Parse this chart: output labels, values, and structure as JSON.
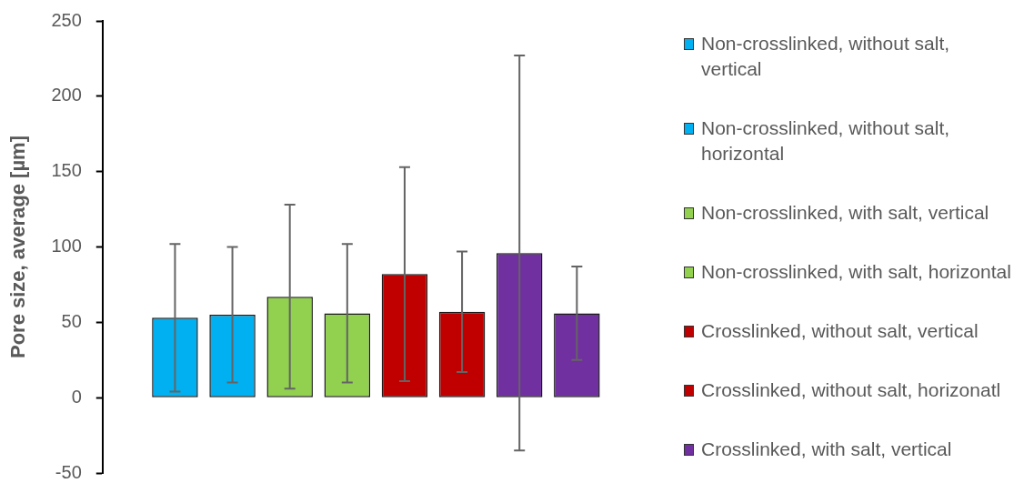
{
  "chart_data": {
    "type": "bar",
    "ylabel": "Pore size, average [µm]",
    "categories": [
      null
    ],
    "series": [
      {
        "name": "Non-crosslinked, without salt, vertical",
        "color": "#00b0f0",
        "values": [
          53
        ],
        "errors": [
          49
        ]
      },
      {
        "name": "Non-crosslinked, without salt, horizontal",
        "color": "#00b0f0",
        "values": [
          55
        ],
        "errors": [
          45
        ]
      },
      {
        "name": "Non-crosslinked, with salt, vertical",
        "color": "#92d050",
        "values": [
          67
        ],
        "errors": [
          61
        ]
      },
      {
        "name": "Non-crosslinked, with salt, horizontal",
        "color": "#92d050",
        "values": [
          56
        ],
        "errors": [
          46
        ]
      },
      {
        "name": "Crosslinked, without salt, vertical",
        "color": "#c00000",
        "values": [
          82
        ],
        "errors": [
          71
        ]
      },
      {
        "name": "Crosslinked, without salt, horizonatl",
        "color": "#c00000",
        "values": [
          57
        ],
        "errors": [
          40
        ]
      },
      {
        "name": "Crosslinked, with salt, vertical",
        "color": "#7030a0",
        "values": [
          96
        ],
        "errors": [
          131
        ]
      },
      {
        "color": "#7030a0",
        "values": [
          56
        ],
        "errors": [
          31
        ]
      }
    ],
    "ylim": [
      -50,
      250
    ],
    "yticks": [
      -50,
      0,
      50,
      100,
      150,
      200,
      250
    ],
    "grid": false,
    "legend": "right"
  }
}
